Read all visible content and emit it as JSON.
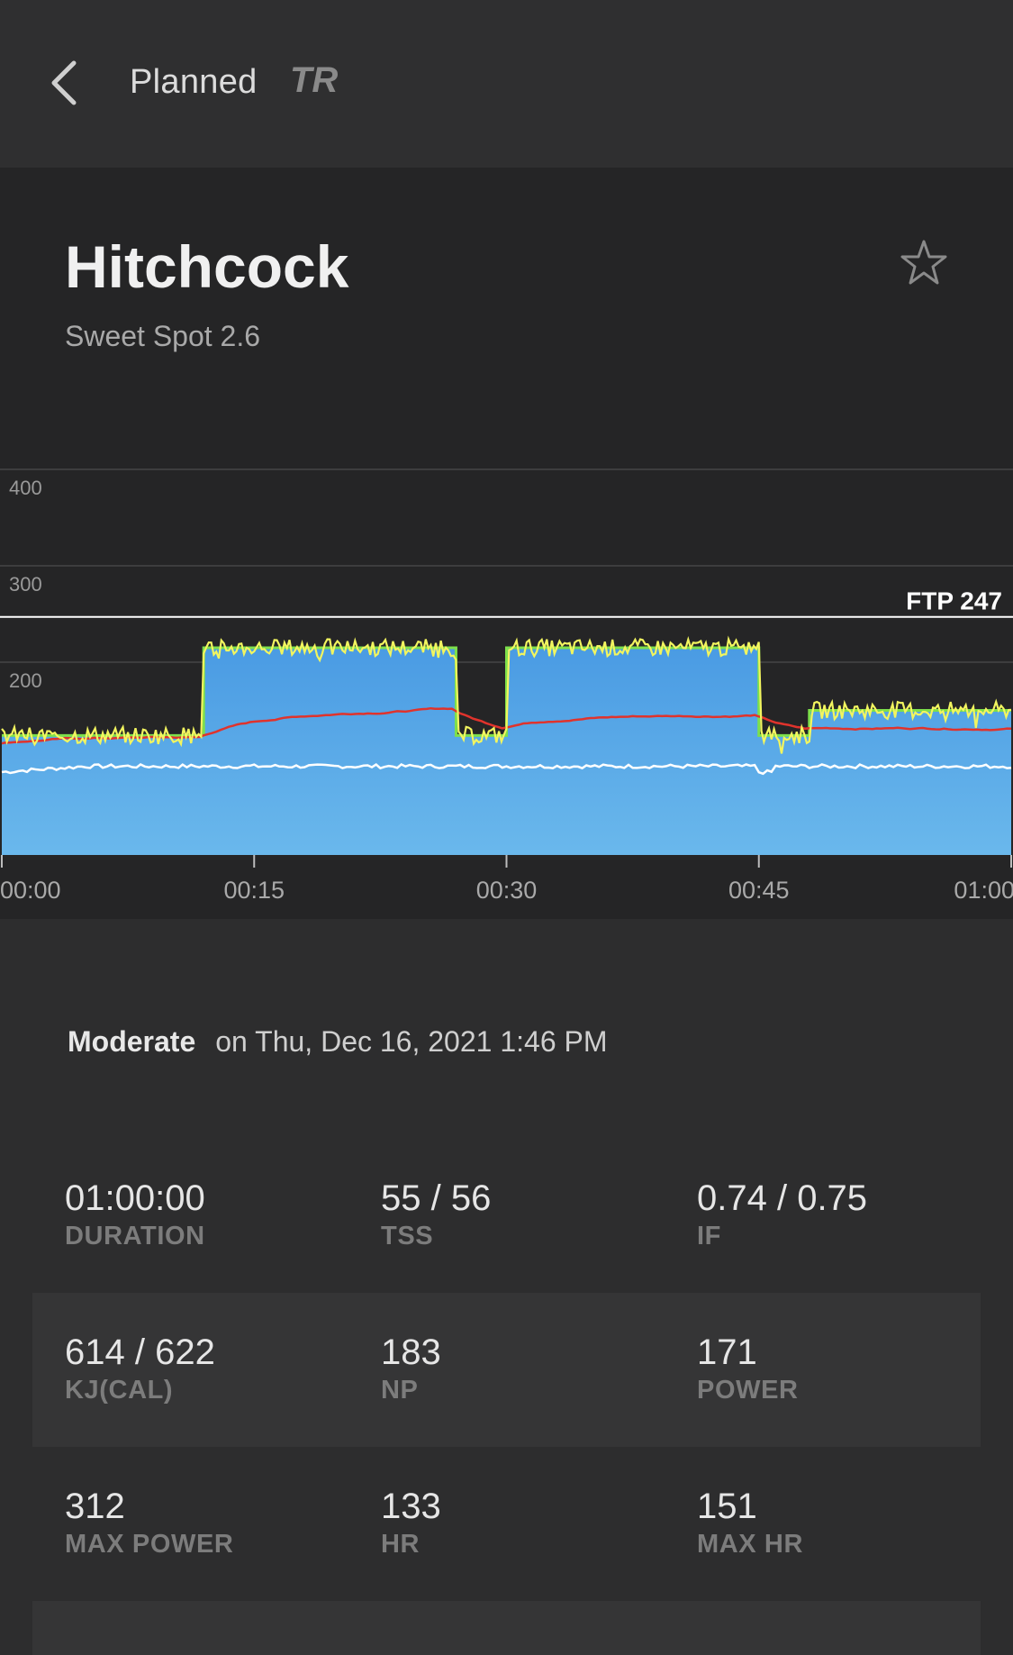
{
  "header": {
    "title": "Planned",
    "logo_text": "TR"
  },
  "workout": {
    "name": "Hitchcock",
    "subtitle": "Sweet Spot 2.6"
  },
  "summary": {
    "intensity": "Moderate",
    "date_text": "on Thu, Dec 16, 2021 1:46 PM"
  },
  "chart_data": {
    "type": "area",
    "y_ticks": [
      "400",
      "300",
      "200"
    ],
    "ylim": [
      0,
      400
    ],
    "x_ticks": [
      "00:00",
      "00:15",
      "00:30",
      "00:45",
      "01:00"
    ],
    "xlim_minutes": [
      0,
      60
    ],
    "ftp_label": "FTP 247",
    "ftp_value": 247,
    "target_power": [
      {
        "start": 0,
        "end": 12,
        "watts": 124
      },
      {
        "start": 12,
        "end": 27,
        "watts": 215
      },
      {
        "start": 27,
        "end": 30,
        "watts": 124
      },
      {
        "start": 30,
        "end": 45,
        "watts": 215
      },
      {
        "start": 45,
        "end": 48,
        "watts": 124
      },
      {
        "start": 48,
        "end": 60,
        "watts": 150
      }
    ],
    "colors": {
      "target_fill_top": "#4a9be3",
      "target_fill_bottom": "#6ab8ec",
      "target_outline": "#7de04b",
      "power": "#f2f55f",
      "heart_rate": "#e0332c",
      "cadence": "#ffffff"
    }
  },
  "stats": [
    [
      {
        "value": "01:00:00",
        "label": "DURATION"
      },
      {
        "value": "55 / 56",
        "label": "TSS"
      },
      {
        "value": "0.74 / 0.75",
        "label": "IF"
      }
    ],
    [
      {
        "value": "614 / 622",
        "label": "KJ(CAL)"
      },
      {
        "value": "183",
        "label": "NP"
      },
      {
        "value": "171",
        "label": "POWER"
      }
    ],
    [
      {
        "value": "312",
        "label": "MAX POWER"
      },
      {
        "value": "133",
        "label": "HR"
      },
      {
        "value": "151",
        "label": "MAX HR"
      }
    ]
  ]
}
